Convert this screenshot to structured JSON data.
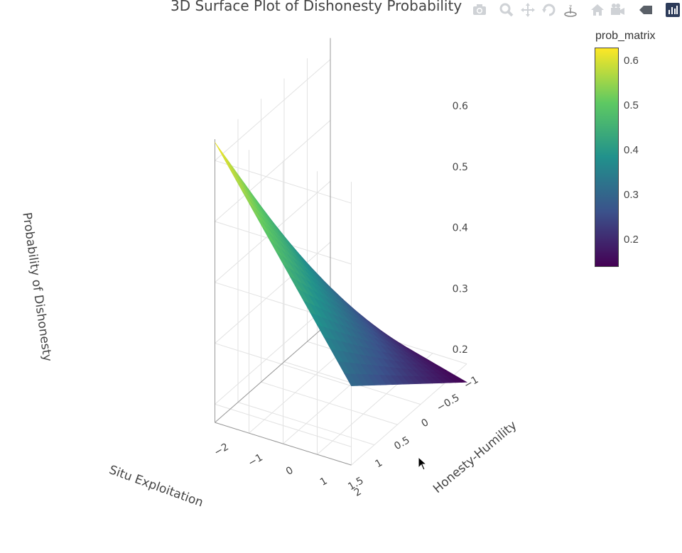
{
  "title": "3D Surface Plot of Dishonesty Probability",
  "modebar": {
    "buttons": [
      {
        "name": "camera-icon"
      },
      {
        "name": "zoom-icon"
      },
      {
        "name": "pan-icon"
      },
      {
        "name": "orbit-icon"
      },
      {
        "name": "turntable-icon"
      },
      {
        "name": "home-icon"
      },
      {
        "name": "camera-view-icon"
      },
      {
        "name": "tag-icon"
      },
      {
        "name": "plotly-logo-icon"
      }
    ]
  },
  "colorbar": {
    "title": "prob_matrix",
    "ticks": [
      "0.6",
      "0.5",
      "0.4",
      "0.3",
      "0.2"
    ],
    "tick_values": [
      0.6,
      0.5,
      0.4,
      0.3,
      0.2
    ],
    "range": [
      0.14,
      0.63
    ],
    "colorscale": [
      "#440154",
      "#3b528b",
      "#21918c",
      "#5ec962",
      "#fde725"
    ]
  },
  "chart_data": {
    "type": "surface",
    "title": "3D Surface Plot of Dishonesty Probability",
    "xlabel": "Situ Exploitation",
    "ylabel": "Honesty-Humility",
    "zlabel": "Probability of Dishonesty",
    "x_ticks": [
      "−1",
      "−0.5",
      "0",
      "0.5",
      "1",
      "1.5"
    ],
    "y_ticks": [
      "−2",
      "−1",
      "0",
      "1",
      "2"
    ],
    "z_ticks": [
      "0.6",
      "0.5",
      "0.4",
      "0.3",
      "0.2"
    ],
    "x_range": [
      -1,
      1.5
    ],
    "y_range": [
      -2,
      2
    ],
    "z_range": [
      0.2,
      0.63
    ],
    "corners": [
      {
        "x": -1.0,
        "y": -2.0,
        "z": 0.2
      },
      {
        "x": 1.5,
        "y": -2.0,
        "z": 0.63
      },
      {
        "x": 1.5,
        "y": 2.0,
        "z": 0.3
      },
      {
        "x": -1.0,
        "y": 2.0,
        "z": 0.14
      }
    ],
    "grid": true
  }
}
